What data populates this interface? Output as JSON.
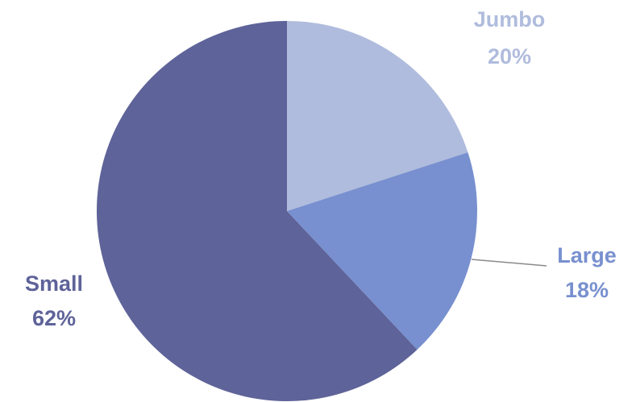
{
  "chart_data": {
    "type": "pie",
    "title": "",
    "start_angle_deg": 0,
    "direction": "clockwise",
    "slices": [
      {
        "label": "Jumbo",
        "value": 20,
        "value_label": "20%",
        "color": "#b0bcdd",
        "label_color": "#b0bcdd"
      },
      {
        "label": "Large",
        "value": 18,
        "value_label": "18%",
        "color": "#7890cf",
        "label_color": "#7890cf"
      },
      {
        "label": "Small",
        "value": 62,
        "value_label": "62%",
        "color": "#5e6399",
        "label_color": "#5e6399"
      }
    ]
  }
}
